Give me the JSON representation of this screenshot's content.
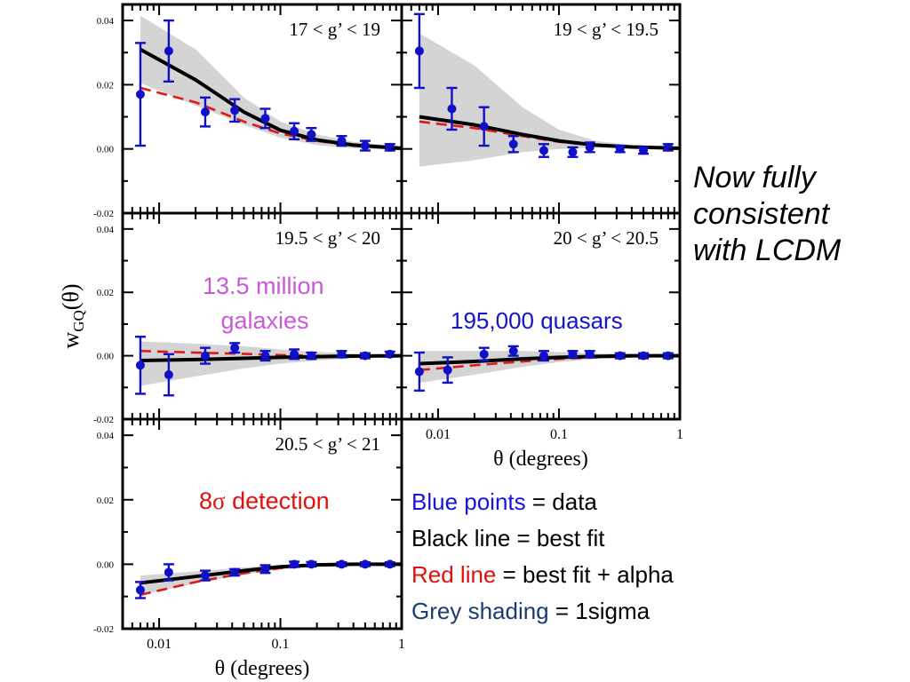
{
  "chart_data": {
    "type": "scatter",
    "xlabel": "θ (degrees)",
    "ylabel": "w_GQ(θ)",
    "xscale": "log",
    "xlim": [
      0.005,
      1.0
    ],
    "ylim": [
      -0.02,
      0.045
    ],
    "xticks": [
      {
        "value": 0.01,
        "label": "0.01"
      },
      {
        "value": 0.1,
        "label": "0.1"
      },
      {
        "value": 1,
        "label": "1"
      }
    ],
    "yticks": [
      {
        "value": 0.04,
        "label": "0.04"
      },
      {
        "value": 0.02,
        "label": "0.02"
      },
      {
        "value": 0.0,
        "label": "0.00"
      },
      {
        "value": -0.02,
        "label": "-0.02"
      }
    ],
    "series_colors": {
      "data": "#1010c8",
      "best_fit": "#000000",
      "best_fit_alpha": "#dd1a1a",
      "one_sigma": "#d4d4d4"
    },
    "panels": [
      {
        "label": "17 < g’ < 19",
        "x": [
          0.007,
          0.012,
          0.024,
          0.042,
          0.075,
          0.13,
          0.18,
          0.32,
          0.5,
          0.8
        ],
        "y": [
          0.017,
          0.0305,
          0.0115,
          0.012,
          0.0095,
          0.0055,
          0.0045,
          0.0025,
          0.001,
          0.0005
        ],
        "yerr": [
          0.016,
          0.0095,
          0.0045,
          0.0035,
          0.003,
          0.0025,
          0.002,
          0.0015,
          0.0015,
          0.001
        ],
        "best_fit": [
          [
            0.007,
            0.031
          ],
          [
            0.02,
            0.0215
          ],
          [
            0.05,
            0.0115
          ],
          [
            0.1,
            0.0058
          ],
          [
            0.2,
            0.0028
          ],
          [
            0.4,
            0.0012
          ],
          [
            1.0,
            0.0002
          ]
        ],
        "best_fit_alpha": [
          [
            0.007,
            0.019
          ],
          [
            0.02,
            0.0145
          ],
          [
            0.05,
            0.0085
          ],
          [
            0.1,
            0.0048
          ],
          [
            0.2,
            0.0025
          ],
          [
            0.4,
            0.001
          ],
          [
            1.0,
            0.0002
          ]
        ],
        "sigma_upper": [
          [
            0.007,
            0.0415
          ],
          [
            0.02,
            0.031
          ],
          [
            0.05,
            0.016
          ],
          [
            0.1,
            0.0085
          ],
          [
            0.2,
            0.0045
          ],
          [
            0.4,
            0.0022
          ],
          [
            1.0,
            0.0008
          ]
        ],
        "sigma_lower": [
          [
            0.007,
            0.0205
          ],
          [
            0.02,
            0.0135
          ],
          [
            0.05,
            0.0075
          ],
          [
            0.1,
            0.0035
          ],
          [
            0.2,
            0.0012
          ],
          [
            0.4,
            0.0002
          ],
          [
            1.0,
            -0.0004
          ]
        ]
      },
      {
        "label": "19 < g’ < 19.5",
        "x": [
          0.007,
          0.013,
          0.024,
          0.042,
          0.075,
          0.13,
          0.18,
          0.32,
          0.5,
          0.8
        ],
        "y": [
          0.0305,
          0.0125,
          0.007,
          0.0015,
          -0.0005,
          -0.001,
          0.0005,
          0.0,
          -0.0005,
          0.0005
        ],
        "yerr": [
          0.0115,
          0.0065,
          0.006,
          0.0025,
          0.002,
          0.0015,
          0.0015,
          0.001,
          0.001,
          0.001
        ],
        "best_fit": [
          [
            0.007,
            0.01
          ],
          [
            0.02,
            0.0075
          ],
          [
            0.05,
            0.0045
          ],
          [
            0.1,
            0.0025
          ],
          [
            0.2,
            0.0012
          ],
          [
            0.4,
            0.0006
          ],
          [
            1.0,
            0.0002
          ]
        ],
        "best_fit_alpha": [
          [
            0.007,
            0.0085
          ],
          [
            0.02,
            0.0065
          ],
          [
            0.05,
            0.004
          ],
          [
            0.1,
            0.0022
          ],
          [
            0.2,
            0.0012
          ],
          [
            0.4,
            0.0006
          ],
          [
            1.0,
            0.0002
          ]
        ],
        "sigma_upper": [
          [
            0.007,
            0.036
          ],
          [
            0.02,
            0.026
          ],
          [
            0.05,
            0.013
          ],
          [
            0.1,
            0.006
          ],
          [
            0.2,
            0.0025
          ],
          [
            0.4,
            0.0012
          ],
          [
            1.0,
            0.0005
          ]
        ],
        "sigma_lower": [
          [
            0.007,
            -0.0055
          ],
          [
            0.02,
            -0.0035
          ],
          [
            0.05,
            -0.001
          ],
          [
            0.1,
            0.0
          ],
          [
            0.2,
            0.0004
          ],
          [
            0.4,
            0.0002
          ],
          [
            1.0,
            0.0
          ]
        ]
      },
      {
        "label": "19.5 < g’ < 20",
        "x": [
          0.007,
          0.012,
          0.024,
          0.042,
          0.075,
          0.13,
          0.18,
          0.32,
          0.5,
          0.8
        ],
        "y": [
          -0.003,
          -0.006,
          0.0,
          0.0025,
          0.0,
          0.0005,
          0.0,
          0.0005,
          0.0,
          0.0005
        ],
        "yerr": [
          0.009,
          0.0065,
          0.0025,
          0.0015,
          0.0015,
          0.0015,
          0.001,
          0.001,
          0.0008,
          0.0008
        ],
        "best_fit": [
          [
            0.007,
            -0.0015
          ],
          [
            0.02,
            -0.0012
          ],
          [
            0.05,
            -0.0008
          ],
          [
            0.1,
            -0.0005
          ],
          [
            0.2,
            -0.0003
          ],
          [
            0.4,
            -0.0001
          ],
          [
            1.0,
            0.0
          ]
        ],
        "best_fit_alpha": [
          [
            0.007,
            0.0015
          ],
          [
            0.02,
            0.001
          ],
          [
            0.05,
            0.0006
          ],
          [
            0.1,
            0.0002
          ],
          [
            0.2,
            0.0
          ],
          [
            0.4,
            0.0
          ],
          [
            1.0,
            0.0
          ]
        ],
        "sigma_upper": [
          [
            0.007,
            0.0045
          ],
          [
            0.02,
            0.0038
          ],
          [
            0.05,
            0.003
          ],
          [
            0.1,
            0.002
          ],
          [
            0.2,
            0.0012
          ],
          [
            0.4,
            0.0007
          ],
          [
            1.0,
            0.0003
          ]
        ],
        "sigma_lower": [
          [
            0.007,
            -0.0095
          ],
          [
            0.02,
            -0.0065
          ],
          [
            0.05,
            -0.004
          ],
          [
            0.1,
            -0.0025
          ],
          [
            0.2,
            -0.0015
          ],
          [
            0.4,
            -0.0008
          ],
          [
            1.0,
            -0.0003
          ]
        ]
      },
      {
        "label": "20 < g’ < 20.5",
        "x": [
          0.007,
          0.012,
          0.024,
          0.042,
          0.075,
          0.13,
          0.18,
          0.32,
          0.5,
          0.8
        ],
        "y": [
          -0.005,
          -0.0045,
          0.0005,
          0.0015,
          0.0,
          0.0005,
          0.0005,
          0.0,
          0.0,
          0.0
        ],
        "yerr": [
          0.006,
          0.004,
          0.002,
          0.0015,
          0.0015,
          0.001,
          0.001,
          0.0008,
          0.0008,
          0.0008
        ],
        "best_fit": [
          [
            0.007,
            -0.0025
          ],
          [
            0.02,
            -0.0018
          ],
          [
            0.05,
            -0.001
          ],
          [
            0.1,
            -0.0005
          ],
          [
            0.2,
            -0.0002
          ],
          [
            0.4,
            0.0
          ],
          [
            1.0,
            0.0
          ]
        ],
        "best_fit_alpha": [
          [
            0.007,
            -0.0045
          ],
          [
            0.02,
            -0.003
          ],
          [
            0.05,
            -0.0018
          ],
          [
            0.1,
            -0.001
          ],
          [
            0.2,
            -0.0005
          ],
          [
            0.4,
            -0.0002
          ],
          [
            1.0,
            0.0
          ]
        ],
        "sigma_upper": [
          [
            0.007,
            0.0015
          ],
          [
            0.02,
            0.0015
          ],
          [
            0.05,
            0.0015
          ],
          [
            0.1,
            0.0012
          ],
          [
            0.2,
            0.0008
          ],
          [
            0.4,
            0.0005
          ],
          [
            1.0,
            0.0003
          ]
        ],
        "sigma_lower": [
          [
            0.007,
            -0.0085
          ],
          [
            0.02,
            -0.006
          ],
          [
            0.05,
            -0.0035
          ],
          [
            0.1,
            -0.002
          ],
          [
            0.2,
            -0.001
          ],
          [
            0.4,
            -0.0005
          ],
          [
            1.0,
            -0.0002
          ]
        ]
      },
      {
        "label": "20.5 < g’ < 21",
        "x": [
          0.007,
          0.012,
          0.024,
          0.042,
          0.075,
          0.13,
          0.18,
          0.32,
          0.5,
          0.8
        ],
        "y": [
          -0.008,
          -0.0025,
          -0.0035,
          -0.0025,
          -0.0015,
          0.0,
          0.0,
          0.0,
          0.0,
          0.0
        ],
        "yerr": [
          0.0025,
          0.0025,
          0.0015,
          0.001,
          0.0012,
          0.0008,
          0.0007,
          0.0006,
          0.0006,
          0.0006
        ],
        "best_fit": [
          [
            0.007,
            -0.0058
          ],
          [
            0.02,
            -0.0038
          ],
          [
            0.05,
            -0.002
          ],
          [
            0.1,
            -0.0008
          ],
          [
            0.2,
            -0.0002
          ],
          [
            0.4,
            0.0
          ],
          [
            1.0,
            0.0
          ]
        ],
        "best_fit_alpha": [
          [
            0.007,
            -0.0095
          ],
          [
            0.02,
            -0.0055
          ],
          [
            0.05,
            -0.0028
          ],
          [
            0.1,
            -0.0012
          ],
          [
            0.2,
            -0.0004
          ],
          [
            0.4,
            -0.0001
          ],
          [
            1.0,
            0.0
          ]
        ],
        "sigma_upper": [
          [
            0.007,
            -0.0035
          ],
          [
            0.02,
            -0.0022
          ],
          [
            0.05,
            -0.001
          ],
          [
            0.1,
            -0.0002
          ],
          [
            0.2,
            0.0002
          ],
          [
            0.4,
            0.0003
          ],
          [
            1.0,
            0.0002
          ]
        ],
        "sigma_lower": [
          [
            0.007,
            -0.0095
          ],
          [
            0.02,
            -0.006
          ],
          [
            0.05,
            -0.0032
          ],
          [
            0.1,
            -0.0016
          ],
          [
            0.2,
            -0.0007
          ],
          [
            0.4,
            -0.0002
          ],
          [
            1.0,
            -0.0001
          ]
        ]
      }
    ]
  },
  "annotations": {
    "galaxies": "13.5 million\ngalaxies",
    "quasars": "195,000 quasars",
    "detection_prefix": "8",
    "detection_sigma": "σ",
    "detection_suffix": " detection"
  },
  "side_note": {
    "line1": "Now fully",
    "line2": "consistent",
    "line3": "with LCDM"
  },
  "legend_text": {
    "blue_label": "Blue points",
    "blue_rest": " = data",
    "black_line": "Black line = best fit",
    "red_label": "Red line",
    "red_rest": " = best fit + alpha",
    "grey_label": "Grey shading",
    "grey_rest": " = 1sigma",
    "blue_color": "#1414dc",
    "red_color": "#e01010",
    "grey_label_color": "#1a3c6e",
    "galaxies_color": "#c85ad8",
    "quasars_color": "#1414cc",
    "detection_color": "#e01010"
  }
}
